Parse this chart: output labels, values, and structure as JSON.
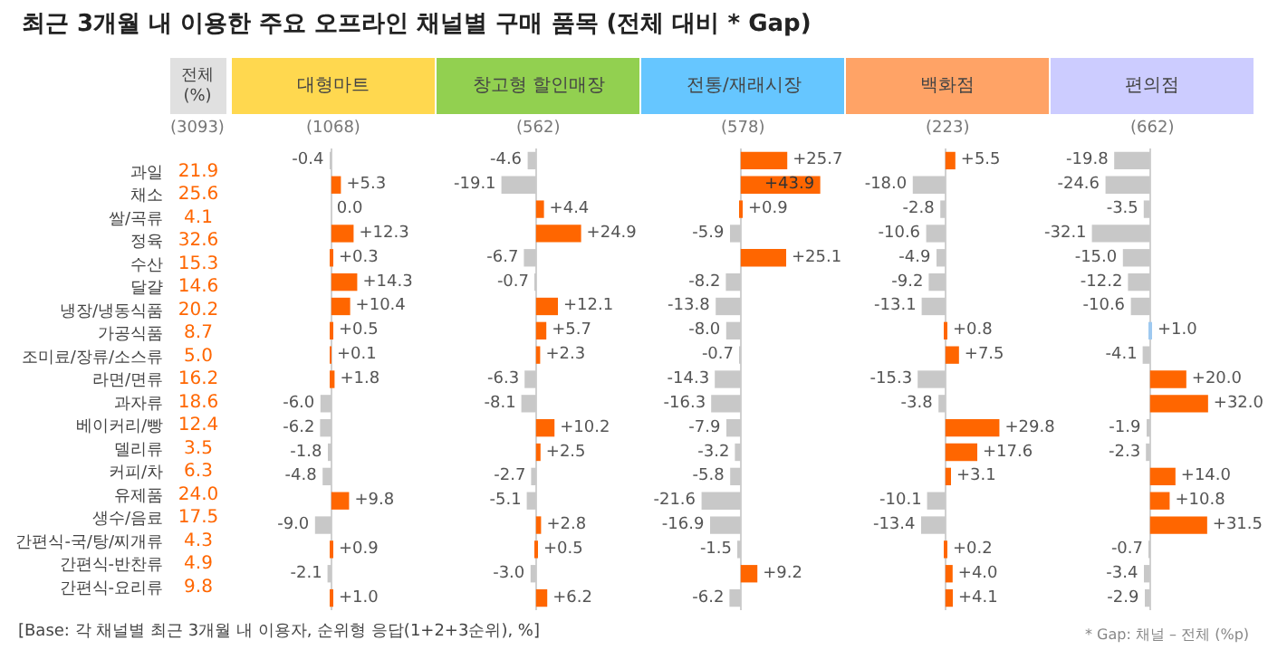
{
  "chart_data": [
    {
      "type": "other",
      "title": "전체\n(%)",
      "subtitle": "(3093)",
      "color": "#ff6600",
      "annotations": [
        "최근 3개월 내 이용한 주요 오프라인 채널별 구매 품목 (전체 대비 * Gap)",
        "[Base: 각 채널별 최근 3개월 내 이용자, 순위형 응답(1+2+3순위), %]",
        "* Gap: 채널 – 전체 (%p)"
      ],
      "categories": [
        "과일",
        "채소",
        "쌀/곡류",
        "정육",
        "수산",
        "달걀",
        "냉장/냉동식품",
        "가공식품",
        "조미료/장류/소스류",
        "라면/면류",
        "과자류",
        "베이커리/빵",
        "델리류",
        "커피/차",
        "유제품",
        "생수/음료",
        "간편식-국/탕/찌개류",
        "간편식-반찬류",
        "간편식-요리류"
      ],
      "values": [
        21.9,
        25.6,
        4.1,
        32.6,
        15.3,
        14.6,
        20.2,
        8.7,
        5.0,
        16.2,
        18.6,
        12.4,
        3.5,
        6.3,
        24.0,
        17.5,
        4.3,
        4.9,
        9.8
      ],
      "value_labels": [
        "21.9",
        "25.6",
        "4.1",
        "32.6",
        "15.3",
        "14.6",
        "20.2",
        "8.7",
        "5.0",
        "16.2",
        "18.6",
        "12.4",
        "3.5",
        "6.3",
        "24.0",
        "17.5",
        "4.3",
        "4.9",
        "9.8"
      ]
    },
    {
      "type": "bar",
      "orientation": "horizontal",
      "title": "대형마트",
      "subtitle": "(1068)",
      "tick_labels": false,
      "categories": [
        "과일",
        "채소",
        "쌀/곡류",
        "정육",
        "수산",
        "달걀",
        "냉장/냉동식품",
        "가공식품",
        "조미료/장류/소스류",
        "라면/면류",
        "과자류",
        "베이커리/빵",
        "델리류",
        "커피/차",
        "유제품",
        "생수/음료",
        "간편식-국/탕/찌개류",
        "간편식-반찬류",
        "간편식-요리류"
      ],
      "values": [
        -0.4,
        5.3,
        0.0,
        12.3,
        0.3,
        14.3,
        10.4,
        0.5,
        0.1,
        1.8,
        -6.0,
        -6.2,
        -1.8,
        -4.8,
        9.8,
        -9.0,
        0.9,
        -2.1,
        1.0
      ],
      "value_labels": [
        "-0.4",
        "+5.3",
        "0.0",
        "+12.3",
        "+0.3",
        "+14.3",
        "+10.4",
        "+0.5",
        "+0.1",
        "+1.8",
        "-6.0",
        "-6.2",
        "-1.8",
        "-4.8",
        "+9.8",
        "-9.0",
        "+0.9",
        "-2.1",
        "+1.0"
      ],
      "colors": [
        "#c8c8c8",
        "#ff6600",
        "#c8c8c8",
        "#ff6600",
        "#ff6600",
        "#ff6600",
        "#ff6600",
        "#ff6600",
        "#ff6600",
        "#ff6600",
        "#c8c8c8",
        "#c8c8c8",
        "#c8c8c8",
        "#c8c8c8",
        "#ff6600",
        "#c8c8c8",
        "#ff6600",
        "#c8c8c8",
        "#ff6600"
      ]
    },
    {
      "type": "bar",
      "orientation": "horizontal",
      "title": "창고형 할인매장",
      "subtitle": "(562)",
      "tick_labels": false,
      "categories": [
        "과일",
        "채소",
        "쌀/곡류",
        "정육",
        "수산",
        "달걀",
        "냉장/냉동식품",
        "가공식품",
        "조미료/장류/소스류",
        "라면/면류",
        "과자류",
        "베이커리/빵",
        "델리류",
        "커피/차",
        "유제품",
        "생수/음료",
        "간편식-국/탕/찌개류",
        "간편식-반찬류",
        "간편식-요리류"
      ],
      "values": [
        -4.6,
        -19.1,
        4.4,
        24.9,
        -6.7,
        -0.7,
        12.1,
        5.7,
        2.3,
        -6.3,
        -8.1,
        10.2,
        2.5,
        -2.7,
        -5.1,
        2.8,
        0.5,
        -3.0,
        6.2
      ],
      "value_labels": [
        "-4.6",
        "-19.1",
        "+4.4",
        "+24.9",
        "-6.7",
        "-0.7",
        "+12.1",
        "+5.7",
        "+2.3",
        "-6.3",
        "-8.1",
        "+10.2",
        "+2.5",
        "-2.7",
        "-5.1",
        "+2.8",
        "+0.5",
        "-3.0",
        "+6.2"
      ],
      "colors": [
        "#c8c8c8",
        "#c8c8c8",
        "#ff6600",
        "#ff6600",
        "#c8c8c8",
        "#c8c8c8",
        "#ff6600",
        "#ff6600",
        "#ff6600",
        "#c8c8c8",
        "#c8c8c8",
        "#ff6600",
        "#ff6600",
        "#c8c8c8",
        "#c8c8c8",
        "#ff6600",
        "#ff6600",
        "#c8c8c8",
        "#ff6600"
      ]
    },
    {
      "type": "bar",
      "orientation": "horizontal",
      "title": "전통/재래시장",
      "subtitle": "(578)",
      "tick_labels": false,
      "categories": [
        "과일",
        "채소",
        "쌀/곡류",
        "정육",
        "수산",
        "달걀",
        "냉장/냉동식품",
        "가공식품",
        "조미료/장류/소스류",
        "라면/면류",
        "과자류",
        "베이커리/빵",
        "델리류",
        "커피/차",
        "유제품",
        "생수/음료",
        "간편식-국/탕/찌개류",
        "간편식-반찬류",
        "간편식-요리류"
      ],
      "values": [
        25.7,
        43.9,
        0.9,
        -5.9,
        25.1,
        -8.2,
        -13.8,
        -8.0,
        -0.7,
        -14.3,
        -16.3,
        -7.9,
        -3.2,
        -5.8,
        -21.6,
        -16.9,
        -1.5,
        9.2,
        -6.2
      ],
      "value_labels": [
        "+25.7",
        "+43.9",
        "+0.9",
        "-5.9",
        "+25.1",
        "-8.2",
        "-13.8",
        "-8.0",
        "-0.7",
        "-14.3",
        "-16.3",
        "-7.9",
        "-3.2",
        "-5.8",
        "-21.6",
        "-16.9",
        "-1.5",
        "+9.2",
        "-6.2"
      ],
      "colors": [
        "#ff6600",
        "#ff6600",
        "#ff6600",
        "#c8c8c8",
        "#ff6600",
        "#c8c8c8",
        "#c8c8c8",
        "#c8c8c8",
        "#c8c8c8",
        "#c8c8c8",
        "#c8c8c8",
        "#c8c8c8",
        "#c8c8c8",
        "#c8c8c8",
        "#c8c8c8",
        "#c8c8c8",
        "#c8c8c8",
        "#ff6600",
        "#c8c8c8"
      ]
    },
    {
      "type": "bar",
      "orientation": "horizontal",
      "title": "백화점",
      "subtitle": "(223)",
      "tick_labels": false,
      "categories": [
        "과일",
        "채소",
        "쌀/곡류",
        "정육",
        "수산",
        "달걀",
        "냉장/냉동식품",
        "가공식품",
        "조미료/장류/소스류",
        "라면/면류",
        "과자류",
        "베이커리/빵",
        "델리류",
        "커피/차",
        "유제품",
        "생수/음료",
        "간편식-국/탕/찌개류",
        "간편식-반찬류",
        "간편식-요리류"
      ],
      "values": [
        5.5,
        -18.0,
        -2.8,
        -10.6,
        -4.9,
        -9.2,
        -13.1,
        0.8,
        7.5,
        -15.3,
        -3.8,
        29.8,
        17.6,
        3.1,
        -10.1,
        -13.4,
        0.2,
        4.0,
        4.1
      ],
      "value_labels": [
        "+5.5",
        "-18.0",
        "-2.8",
        "-10.6",
        "-4.9",
        "-9.2",
        "-13.1",
        "+0.8",
        "+7.5",
        "-15.3",
        "-3.8",
        "+29.8",
        "+17.6",
        "+3.1",
        "-10.1",
        "-13.4",
        "+0.2",
        "+4.0",
        "+4.1"
      ],
      "colors": [
        "#ff6600",
        "#c8c8c8",
        "#c8c8c8",
        "#c8c8c8",
        "#c8c8c8",
        "#c8c8c8",
        "#c8c8c8",
        "#ff6600",
        "#ff6600",
        "#c8c8c8",
        "#c8c8c8",
        "#ff6600",
        "#ff6600",
        "#ff6600",
        "#c8c8c8",
        "#c8c8c8",
        "#ff6600",
        "#ff6600",
        "#ff6600"
      ]
    },
    {
      "type": "bar",
      "orientation": "horizontal",
      "title": "편의점",
      "subtitle": "(662)",
      "tick_labels": false,
      "categories": [
        "과일",
        "채소",
        "쌀/곡류",
        "정육",
        "수산",
        "달걀",
        "냉장/냉동식품",
        "가공식품",
        "조미료/장류/소스류",
        "라면/면류",
        "과자류",
        "베이커리/빵",
        "델리류",
        "커피/차",
        "유제품",
        "생수/음료",
        "간편식-국/탕/찌개류",
        "간편식-반찬류",
        "간편식-요리류"
      ],
      "values": [
        -19.8,
        -24.6,
        -3.5,
        -32.1,
        -15.0,
        -12.2,
        -10.6,
        1.0,
        -4.1,
        20.0,
        32.0,
        -1.9,
        -2.3,
        14.0,
        10.8,
        31.5,
        -0.7,
        -3.4,
        -2.9
      ],
      "value_labels": [
        "-19.8",
        "-24.6",
        "-3.5",
        "-32.1",
        "-15.0",
        "-12.2",
        "-10.6",
        "+1.0",
        "-4.1",
        "+20.0",
        "+32.0",
        "-1.9",
        "-2.3",
        "+14.0",
        "+10.8",
        "+31.5",
        "-0.7",
        "-3.4",
        "-2.9"
      ],
      "colors": [
        "#c8c8c8",
        "#c8c8c8",
        "#c8c8c8",
        "#c8c8c8",
        "#c8c8c8",
        "#c8c8c8",
        "#c8c8c8",
        "#9ec9f0",
        "#c8c8c8",
        "#ff6600",
        "#ff6600",
        "#c8c8c8",
        "#c8c8c8",
        "#ff6600",
        "#ff6600",
        "#ff6600",
        "#c8c8c8",
        "#c8c8c8",
        "#c8c8c8"
      ]
    }
  ]
}
